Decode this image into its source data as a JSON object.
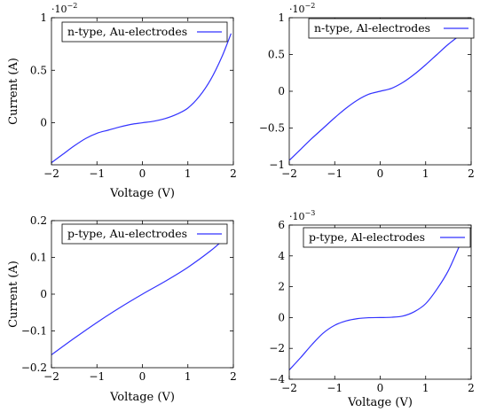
{
  "chart_data": [
    {
      "type": "line",
      "title": "",
      "xlabel": "Voltage (V)",
      "ylabel": "Current (A)",
      "scale_label": "10",
      "scale_exponent": "−2",
      "xlim": [
        -2,
        2
      ],
      "ylim": [
        -0.4,
        1.0
      ],
      "xticks": [
        -2,
        -1,
        0,
        1,
        2
      ],
      "xtick_labels": [
        "−2",
        "−1",
        "0",
        "1",
        "2"
      ],
      "yticks": [
        0,
        0.5,
        1
      ],
      "ytick_labels": [
        "0",
        "0.5",
        "1"
      ],
      "legend_position": "top-right",
      "grid": false,
      "series": [
        {
          "name": "n-type, Au-electrodes",
          "color": "#3333ff",
          "x": [
            -2.0,
            -1.75,
            -1.5,
            -1.25,
            -1.0,
            -0.75,
            -0.5,
            -0.25,
            0.0,
            0.25,
            0.5,
            0.75,
            1.0,
            1.25,
            1.5,
            1.75,
            1.95
          ],
          "y": [
            -0.38,
            -0.3,
            -0.22,
            -0.15,
            -0.1,
            -0.07,
            -0.04,
            -0.015,
            0.0,
            0.015,
            0.04,
            0.08,
            0.14,
            0.25,
            0.41,
            0.63,
            0.85
          ]
        }
      ]
    },
    {
      "type": "line",
      "title": "",
      "xlabel": "",
      "ylabel": "",
      "scale_label": "10",
      "scale_exponent": "−2",
      "xlim": [
        -2,
        2
      ],
      "ylim": [
        -1.0,
        1.0
      ],
      "xticks": [
        -2,
        -1,
        0,
        1,
        2
      ],
      "xtick_labels": [
        "−2",
        "−1",
        "0",
        "1",
        "2"
      ],
      "yticks": [
        -1,
        -0.5,
        0,
        0.5,
        1
      ],
      "ytick_labels": [
        "−1",
        "−0.5",
        "0",
        "0.5",
        "1"
      ],
      "legend_position": "top-right",
      "grid": false,
      "series": [
        {
          "name": "n-type, Al-electrodes",
          "color": "#3333ff",
          "x": [
            -2.0,
            -1.75,
            -1.5,
            -1.25,
            -1.0,
            -0.75,
            -0.5,
            -0.25,
            0.0,
            0.25,
            0.5,
            0.75,
            1.0,
            1.25,
            1.5,
            1.75
          ],
          "y": [
            -0.94,
            -0.79,
            -0.64,
            -0.5,
            -0.36,
            -0.23,
            -0.12,
            -0.04,
            0.0,
            0.04,
            0.12,
            0.23,
            0.36,
            0.5,
            0.64,
            0.76
          ]
        }
      ]
    },
    {
      "type": "line",
      "title": "",
      "xlabel": "Voltage (V)",
      "ylabel": "Current (A)",
      "scale_label": "",
      "scale_exponent": "",
      "xlim": [
        -2,
        2
      ],
      "ylim": [
        -0.2,
        0.2
      ],
      "xticks": [
        -2,
        -1,
        0,
        1,
        2
      ],
      "xtick_labels": [
        "−2",
        "−1",
        "0",
        "1",
        "2"
      ],
      "yticks": [
        -0.2,
        -0.1,
        0,
        0.1,
        0.2
      ],
      "ytick_labels": [
        "−0.2",
        "−0.1",
        "0",
        "0.1",
        "0.2"
      ],
      "legend_position": "top-right",
      "grid": false,
      "series": [
        {
          "name": "p-type, Au-electrodes",
          "color": "#3333ff",
          "x": [
            -2.0,
            -1.5,
            -1.0,
            -0.5,
            0.0,
            0.5,
            1.0,
            1.5,
            1.8
          ],
          "y": [
            -0.165,
            -0.12,
            -0.077,
            -0.037,
            0.0,
            0.035,
            0.073,
            0.118,
            0.15
          ]
        }
      ]
    },
    {
      "type": "line",
      "title": "",
      "xlabel": "Voltage (V)",
      "ylabel": "",
      "scale_label": "10",
      "scale_exponent": "−3",
      "xlim": [
        -2,
        2
      ],
      "ylim": [
        -4,
        6
      ],
      "xticks": [
        -2,
        -1,
        0,
        1,
        2
      ],
      "xtick_labels": [
        "−2",
        "−1",
        "0",
        "1",
        "2"
      ],
      "yticks": [
        -4,
        -2,
        0,
        2,
        4,
        6
      ],
      "ytick_labels": [
        "−4",
        "−2",
        "0",
        "2",
        "4",
        "6"
      ],
      "legend_position": "top-right",
      "grid": false,
      "series": [
        {
          "name": "p-type, Al-electrodes",
          "color": "#3333ff",
          "x": [
            -2.0,
            -1.75,
            -1.5,
            -1.25,
            -1.0,
            -0.75,
            -0.5,
            -0.25,
            0.0,
            0.25,
            0.5,
            0.75,
            1.0,
            1.25,
            1.5,
            1.75
          ],
          "y": [
            -3.4,
            -2.6,
            -1.75,
            -1.0,
            -0.5,
            -0.22,
            -0.07,
            -0.01,
            0.0,
            0.02,
            0.1,
            0.38,
            0.9,
            1.85,
            3.05,
            4.7
          ]
        }
      ]
    }
  ]
}
